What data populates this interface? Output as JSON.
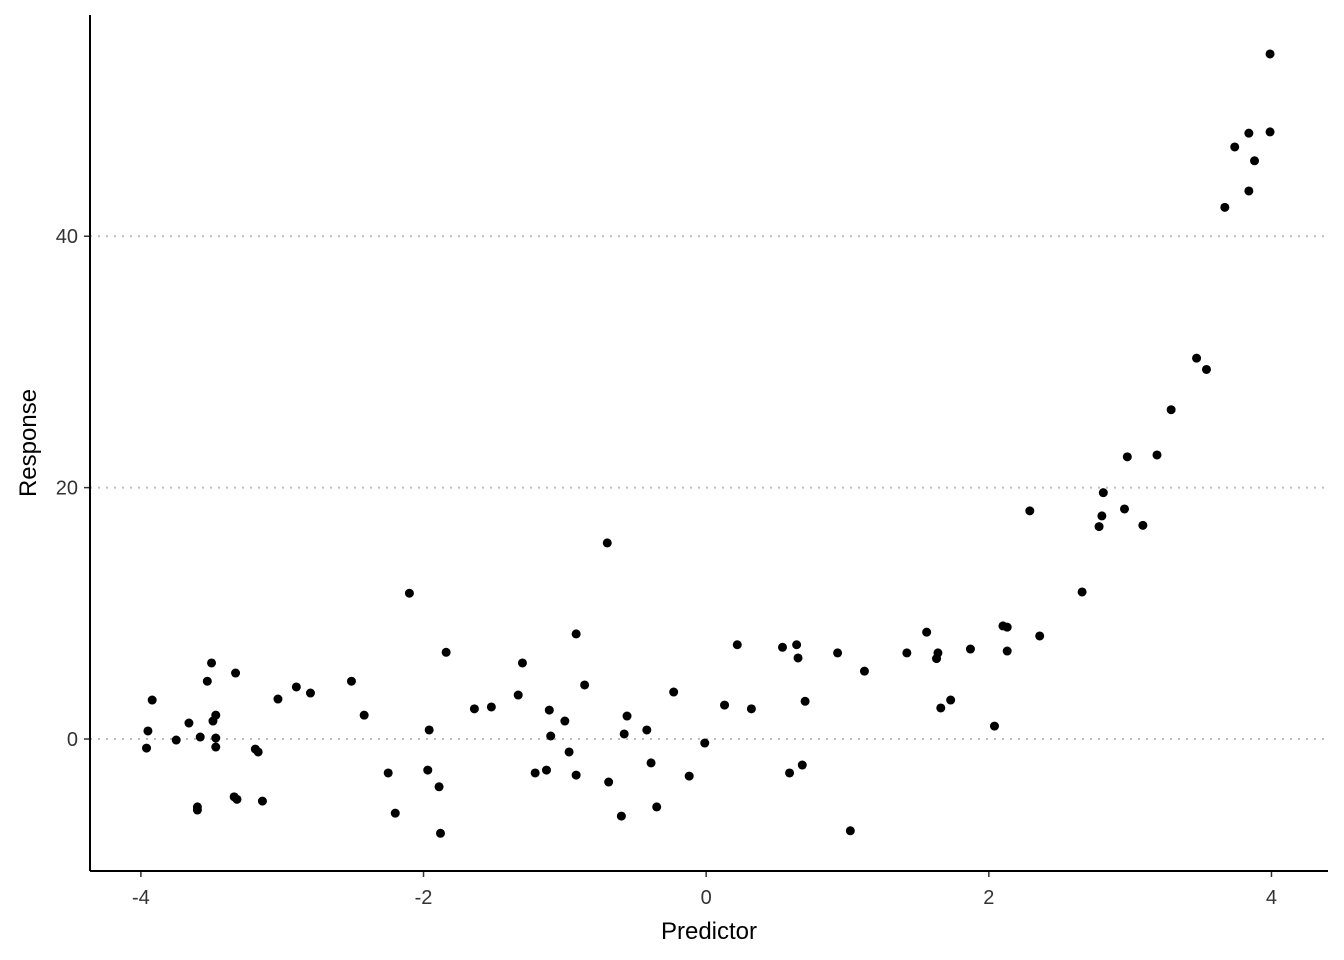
{
  "chart_data": {
    "type": "scatter",
    "x_label": "Predictor",
    "y_label": "Response",
    "x": [
      -3.96,
      -3.95,
      -3.92,
      -3.75,
      -3.66,
      -3.6,
      -3.6,
      -3.58,
      -3.53,
      -3.5,
      -3.49,
      -3.47,
      -3.47,
      -3.47,
      -3.33,
      -3.34,
      -3.32,
      -3.19,
      -3.17,
      -3.14,
      -3.03,
      -2.9,
      -2.8,
      -2.51,
      -2.42,
      -2.25,
      -2.2,
      -2.1,
      -1.97,
      -1.96,
      -1.89,
      -1.88,
      -1.84,
      -1.64,
      -1.52,
      -1.33,
      -1.3,
      -1.21,
      -1.13,
      -1.11,
      -1.1,
      -1.0,
      -0.97,
      -0.92,
      -0.92,
      -0.86,
      -0.7,
      -0.69,
      -0.6,
      -0.58,
      -0.56,
      -0.42,
      -0.39,
      -0.35,
      -0.23,
      -0.12,
      -0.01,
      0.13,
      0.22,
      0.32,
      0.54,
      0.59,
      0.64,
      0.65,
      0.68,
      0.7,
      0.93,
      1.02,
      1.12,
      1.42,
      1.56,
      1.63,
      1.64,
      1.66,
      1.73,
      1.87,
      2.04,
      2.1,
      2.13,
      2.13,
      2.29,
      2.36,
      2.66,
      2.78,
      2.8,
      2.81,
      2.96,
      2.98,
      3.09,
      3.19,
      3.29,
      3.47,
      3.54,
      3.67,
      3.74,
      3.84,
      3.84,
      3.88,
      3.99,
      3.99
    ],
    "values": [
      -0.72,
      0.64,
      3.1,
      -0.08,
      1.27,
      -5.4,
      -5.65,
      0.16,
      4.6,
      6.05,
      1.43,
      1.9,
      0.08,
      -0.64,
      5.25,
      -4.6,
      -4.8,
      -0.8,
      -1.03,
      -4.94,
      3.18,
      4.14,
      3.66,
      4.6,
      1.9,
      -2.7,
      -5.9,
      11.6,
      -2.47,
      0.72,
      -3.8,
      -7.5,
      6.9,
      2.4,
      2.55,
      3.5,
      6.05,
      -2.7,
      -2.47,
      2.3,
      0.24,
      1.43,
      -1.03,
      8.36,
      -2.87,
      4.3,
      15.6,
      -3.42,
      -6.13,
      0.4,
      1.83,
      0.72,
      -1.9,
      -5.4,
      3.74,
      -2.95,
      -0.32,
      2.7,
      7.5,
      2.4,
      7.3,
      -2.7,
      7.5,
      6.45,
      -2.07,
      3.0,
      6.85,
      -7.3,
      5.4,
      6.85,
      8.5,
      6.4,
      6.85,
      2.47,
      3.1,
      7.16,
      1.03,
      9.0,
      8.9,
      7.0,
      18.15,
      8.2,
      11.7,
      16.9,
      17.75,
      19.6,
      18.3,
      22.45,
      17.0,
      22.6,
      26.2,
      30.3,
      29.4,
      42.3,
      47.1,
      43.6,
      48.2,
      46.0,
      48.3,
      54.5
    ],
    "color": "#000000",
    "xlim": [
      -4.36,
      4.4
    ],
    "ylim": [
      -10.5,
      57.6
    ],
    "xticks": [
      -4,
      -2,
      0,
      2,
      4
    ],
    "yticks": [
      0,
      20,
      40
    ],
    "grid": "y"
  }
}
